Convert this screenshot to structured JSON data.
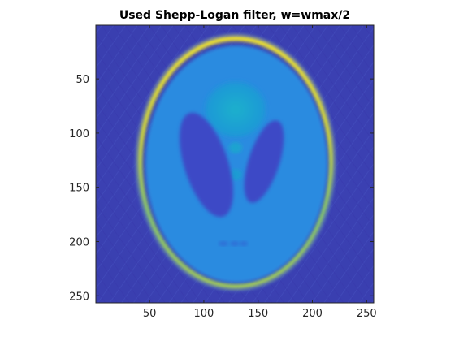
{
  "figure": {
    "title": "Used Shepp-Logan filter, w=wmax/2",
    "colormap": "parula",
    "background_color": "#3b3fb1",
    "ellipse_rim_color": "#f2e32a",
    "head_fill_color": "#2c8ce0",
    "ventricle_color": "#3b4fc8",
    "central_ellipse_color": "#1aa6c8"
  },
  "axes": {
    "xlim": [
      1,
      256
    ],
    "ylim": [
      1,
      256
    ],
    "y_reversed": true,
    "xticks": [
      50,
      100,
      150,
      200,
      250
    ],
    "yticks": [
      50,
      100,
      150,
      200,
      250
    ],
    "xtick_labels": [
      "50",
      "100",
      "150",
      "200",
      "250"
    ],
    "ytick_labels": [
      "50",
      "100",
      "150",
      "200",
      "250"
    ]
  }
}
